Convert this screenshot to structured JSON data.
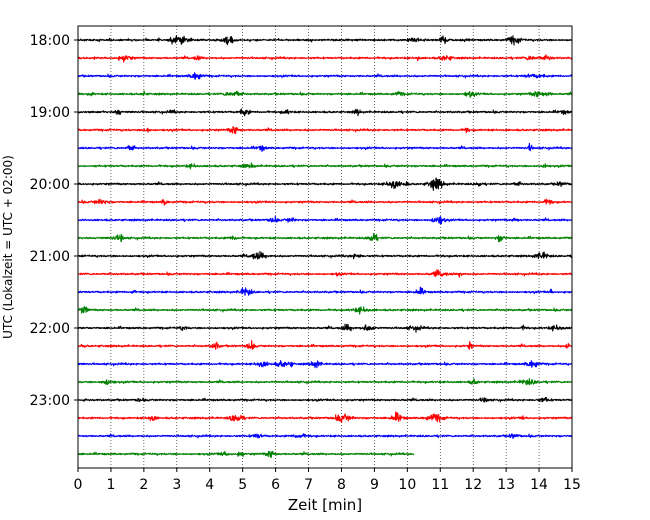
{
  "chart_data": {
    "type": "line",
    "title": "",
    "xlabel": "Zeit  [min]",
    "ylabel": "UTC (Lokalzeit = UTC + 02:00)",
    "xlim": [
      0,
      15
    ],
    "x_ticks": [
      "0",
      "1",
      "2",
      "3",
      "4",
      "5",
      "6",
      "7",
      "8",
      "9",
      "10",
      "11",
      "12",
      "13",
      "14",
      "15"
    ],
    "y_ticks": [
      "18:00",
      "19:00",
      "20:00",
      "21:00",
      "22:00",
      "23:00"
    ],
    "grid": "vertical dotted at each minute",
    "legend": "none",
    "colors": [
      "#000000",
      "#ff0000",
      "#0000ff",
      "#008000"
    ],
    "traces": [
      {
        "start": "18:00",
        "color": "#000000",
        "x_end": 15
      },
      {
        "start": "18:15",
        "color": "#ff0000",
        "x_end": 15
      },
      {
        "start": "18:30",
        "color": "#0000ff",
        "x_end": 15
      },
      {
        "start": "18:45",
        "color": "#008000",
        "x_end": 15
      },
      {
        "start": "19:00",
        "color": "#000000",
        "x_end": 15
      },
      {
        "start": "19:15",
        "color": "#ff0000",
        "x_end": 15
      },
      {
        "start": "19:30",
        "color": "#0000ff",
        "x_end": 15
      },
      {
        "start": "19:45",
        "color": "#008000",
        "x_end": 15
      },
      {
        "start": "20:00",
        "color": "#000000",
        "x_end": 15
      },
      {
        "start": "20:15",
        "color": "#ff0000",
        "x_end": 15
      },
      {
        "start": "20:30",
        "color": "#0000ff",
        "x_end": 15
      },
      {
        "start": "20:45",
        "color": "#008000",
        "x_end": 15
      },
      {
        "start": "21:00",
        "color": "#000000",
        "x_end": 15
      },
      {
        "start": "21:15",
        "color": "#ff0000",
        "x_end": 15
      },
      {
        "start": "21:30",
        "color": "#0000ff",
        "x_end": 15
      },
      {
        "start": "21:45",
        "color": "#008000",
        "x_end": 15
      },
      {
        "start": "22:00",
        "color": "#000000",
        "x_end": 15
      },
      {
        "start": "22:15",
        "color": "#ff0000",
        "x_end": 15
      },
      {
        "start": "22:30",
        "color": "#0000ff",
        "x_end": 15
      },
      {
        "start": "22:45",
        "color": "#008000",
        "x_end": 15
      },
      {
        "start": "23:00",
        "color": "#000000",
        "x_end": 15
      },
      {
        "start": "23:15",
        "color": "#ff0000",
        "x_end": 15
      },
      {
        "start": "23:30",
        "color": "#0000ff",
        "x_end": 15
      },
      {
        "start": "23:45",
        "color": "#008000",
        "x_end": 10.2
      }
    ]
  }
}
